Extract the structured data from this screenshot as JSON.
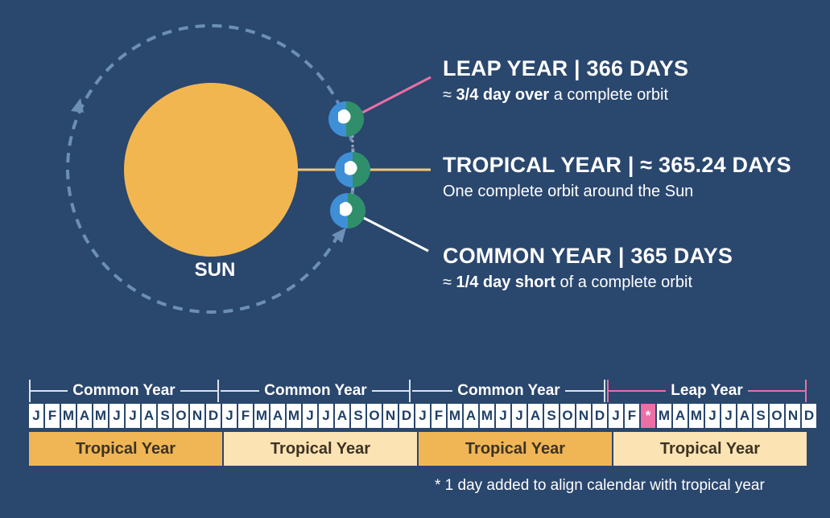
{
  "labels": {
    "leap": {
      "title": "LEAP YEAR | 366 DAYS",
      "sub_prefix": "≈ ",
      "sub_bold": "3/4 day over",
      "sub_rest": " a complete orbit"
    },
    "tropical": {
      "title": "TROPICAL YEAR | ≈ 365.24 DAYS",
      "sub": "One complete orbit around the Sun"
    },
    "common": {
      "title": "COMMON YEAR | 365 DAYS",
      "sub_prefix": "≈ ",
      "sub_bold": "1/4 day short",
      "sub_rest": " of a complete orbit"
    },
    "sun": "SUN"
  },
  "calendar": {
    "years": [
      "Common Year",
      "Common Year",
      "Common Year",
      "Leap Year"
    ],
    "months": [
      "J",
      "F",
      "M",
      "A",
      "M",
      "J",
      "J",
      "A",
      "S",
      "O",
      "N",
      "D"
    ],
    "leap_marker": "*",
    "tropical": [
      "Tropical Year",
      "Tropical Year",
      "Tropical Year",
      "Tropical Year"
    ],
    "footnote": "* 1 day added to align calendar with tropical year"
  },
  "colors": {
    "background": "#2a476e",
    "sun": "#f2b650",
    "leap_accent": "#ec6fa5",
    "tropical_dark": "#f0b655",
    "tropical_light": "#fce3b4",
    "orbit": "#6b8fb5"
  }
}
